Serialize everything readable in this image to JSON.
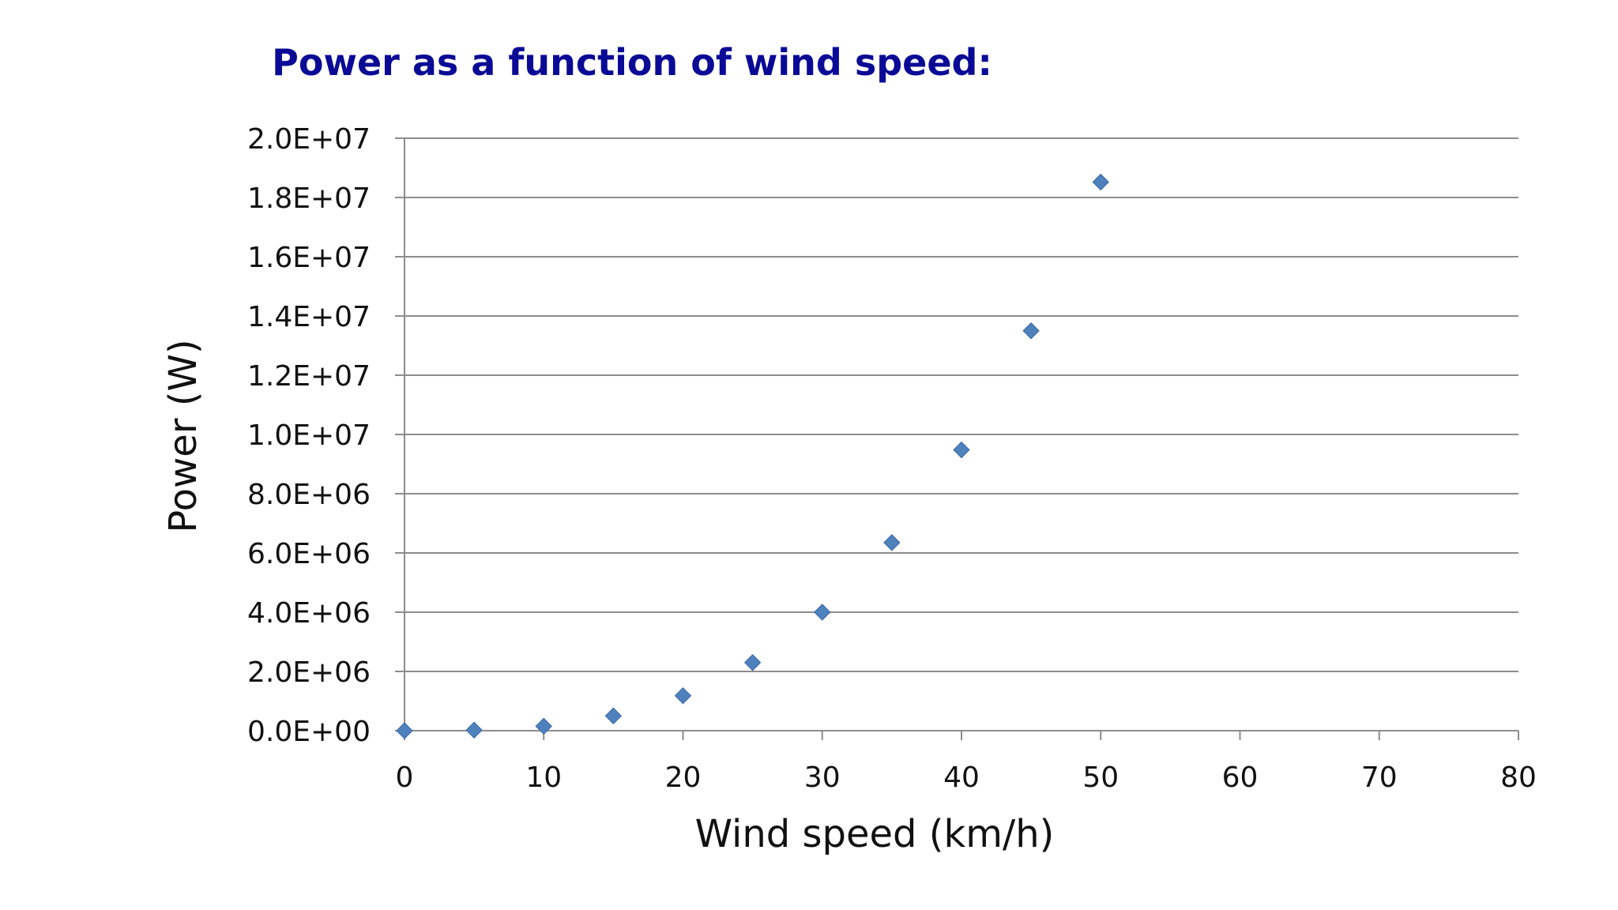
{
  "colors": {
    "title": "#0a0a96",
    "marker": "#4f81bd",
    "marker_stroke": "#3a6aa8",
    "gridline": "#8c8c8c",
    "axis": "#8c8c8c",
    "text": "#111111"
  },
  "chart_data": {
    "type": "scatter",
    "title": "Power as a function of wind speed:",
    "xlabel": "Wind speed (km/h)",
    "ylabel": "Power (W)",
    "xlim": [
      0,
      80
    ],
    "ylim": [
      0,
      20000000
    ],
    "x_ticks": [
      0,
      10,
      20,
      30,
      40,
      50,
      60,
      70,
      80
    ],
    "x_tick_labels": [
      "0",
      "10",
      "20",
      "30",
      "40",
      "50",
      "60",
      "70",
      "80"
    ],
    "y_ticks": [
      0,
      2000000,
      4000000,
      6000000,
      8000000,
      10000000,
      12000000,
      14000000,
      16000000,
      18000000,
      20000000
    ],
    "y_tick_labels": [
      "0.0E+00",
      "2.0E+06",
      "4.0E+06",
      "6.0E+06",
      "8.0E+06",
      "1.0E+07",
      "1.2E+07",
      "1.4E+07",
      "1.6E+07",
      "1.8E+07",
      "2.0E+07"
    ],
    "grid": "horizontal",
    "marker": "diamond",
    "series": [
      {
        "x": [
          0,
          5,
          10,
          15,
          20,
          25,
          30,
          35,
          40,
          45,
          50
        ],
        "y": [
          0,
          20000,
          150000,
          500000,
          1180000,
          2300000,
          4000000,
          6350000,
          9480000,
          13500000,
          18520000
        ]
      }
    ]
  }
}
